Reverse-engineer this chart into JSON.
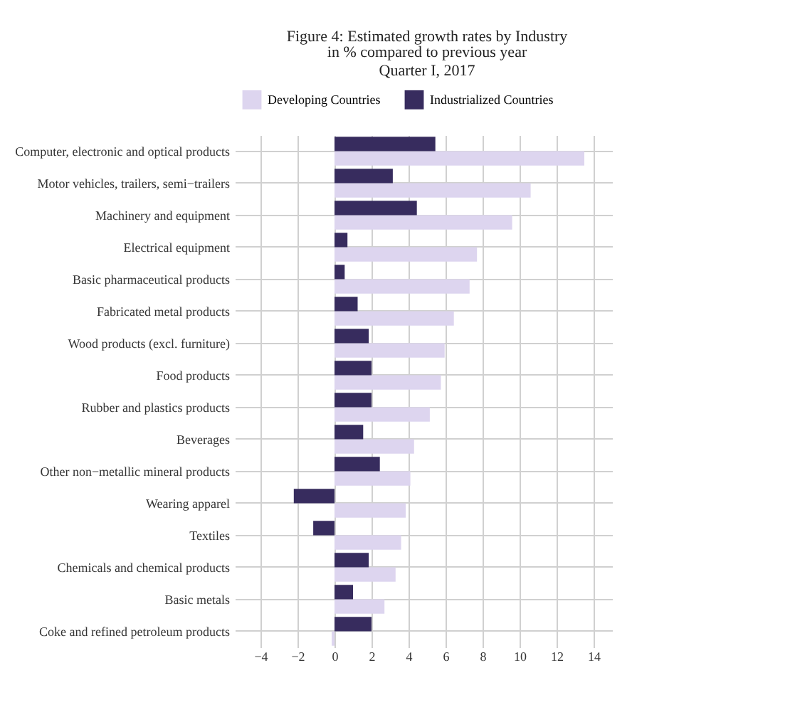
{
  "chart_data": {
    "type": "bar",
    "orientation": "horizontal",
    "title": "Figure 4: Estimated growth rates by Industry",
    "subtitle": "in % compared to previous year\nQuarter I, 2017",
    "categories": [
      "Computer, electronic and optical products",
      "Motor vehicles, trailers, semi−trailers",
      "Machinery and equipment",
      "Electrical equipment",
      "Basic pharmaceutical products",
      "Fabricated metal products",
      "Wood products (excl. furniture)",
      "Food products",
      "Rubber and plastics products",
      "Beverages",
      "Other non−metallic mineral products",
      "Wearing apparel",
      "Textiles",
      "Chemicals and chemical products",
      "Basic metals",
      "Coke and refined petroleum products"
    ],
    "series": [
      {
        "name": "Developing Countries",
        "color": "#ddd5ef",
        "values": [
          13.5,
          10.6,
          9.6,
          7.7,
          7.3,
          6.45,
          5.95,
          5.75,
          5.15,
          4.3,
          4.1,
          3.85,
          3.6,
          3.3,
          2.7,
          -0.15
        ]
      },
      {
        "name": "Industrialized Countries",
        "color": "#372c5e",
        "values": [
          5.45,
          3.15,
          4.45,
          0.7,
          0.55,
          1.25,
          1.85,
          2.0,
          2.0,
          1.55,
          2.45,
          -2.2,
          -1.15,
          1.85,
          1.0,
          2.0
        ]
      }
    ],
    "xlim": [
      -5,
      15
    ],
    "xticks": [
      -4,
      -2,
      0,
      2,
      4,
      6,
      8,
      10,
      12,
      14
    ],
    "grid": true,
    "legend": "top"
  }
}
